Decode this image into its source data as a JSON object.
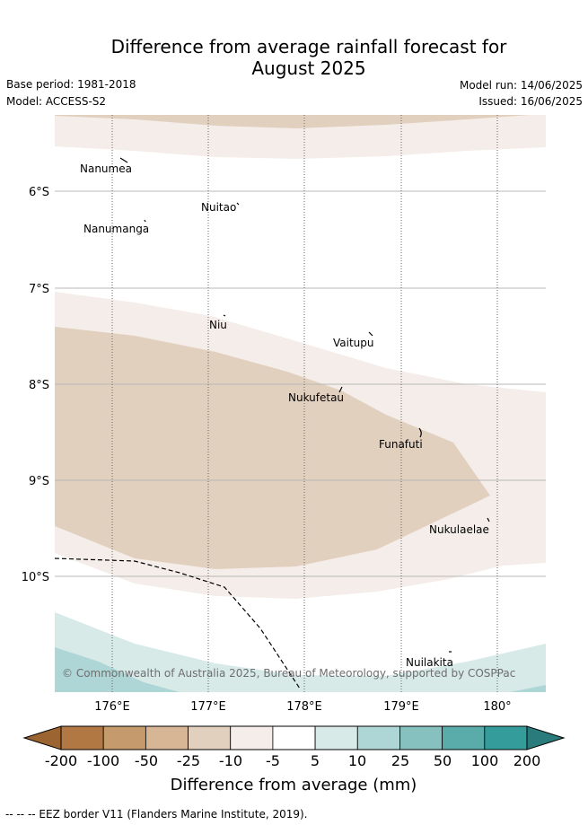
{
  "title_line1": "Difference from average rainfall forecast for",
  "title_line2": "August 2025",
  "base_period": "Base period: 1981-2018",
  "model": "Model: ACCESS-S2",
  "model_run": "Model run: 14/06/2025",
  "issued": "Issued: 16/06/2025",
  "copyright": "© Commonwealth of Australia 2025, Bureau of Meteorology, supported by COSPPac",
  "lat_labels": [
    "6°S",
    "7°S",
    "8°S",
    "9°S",
    "10°S"
  ],
  "lon_labels": [
    "176°E",
    "177°E",
    "178°E",
    "179°E",
    "180°"
  ],
  "places": [
    "Nanumea",
    "Nuitao",
    "Nanumanga",
    "Niu",
    "Vaitupu",
    "Nukufetau",
    "Funafuti",
    "Nukulaelae",
    "Nuilakita"
  ],
  "colorbar": {
    "label": "Difference from average (mm)",
    "ticks": [
      "-200",
      "-100",
      "-50",
      "-25",
      "-10",
      "-5",
      "5",
      "10",
      "25",
      "50",
      "100",
      "200"
    ],
    "colors": [
      "#9b6431",
      "#b27843",
      "#c59a6d",
      "#d6b695",
      "#e2d0bf",
      "#f4ede9",
      "#ffffff",
      "#d7eae8",
      "#aed6d6",
      "#86c1c0",
      "#5aacaa",
      "#349c9b",
      "#2a7b7b"
    ]
  },
  "footnote": "--  --  -- EEZ border V11 (Flanders Marine Institute, 2019)."
}
